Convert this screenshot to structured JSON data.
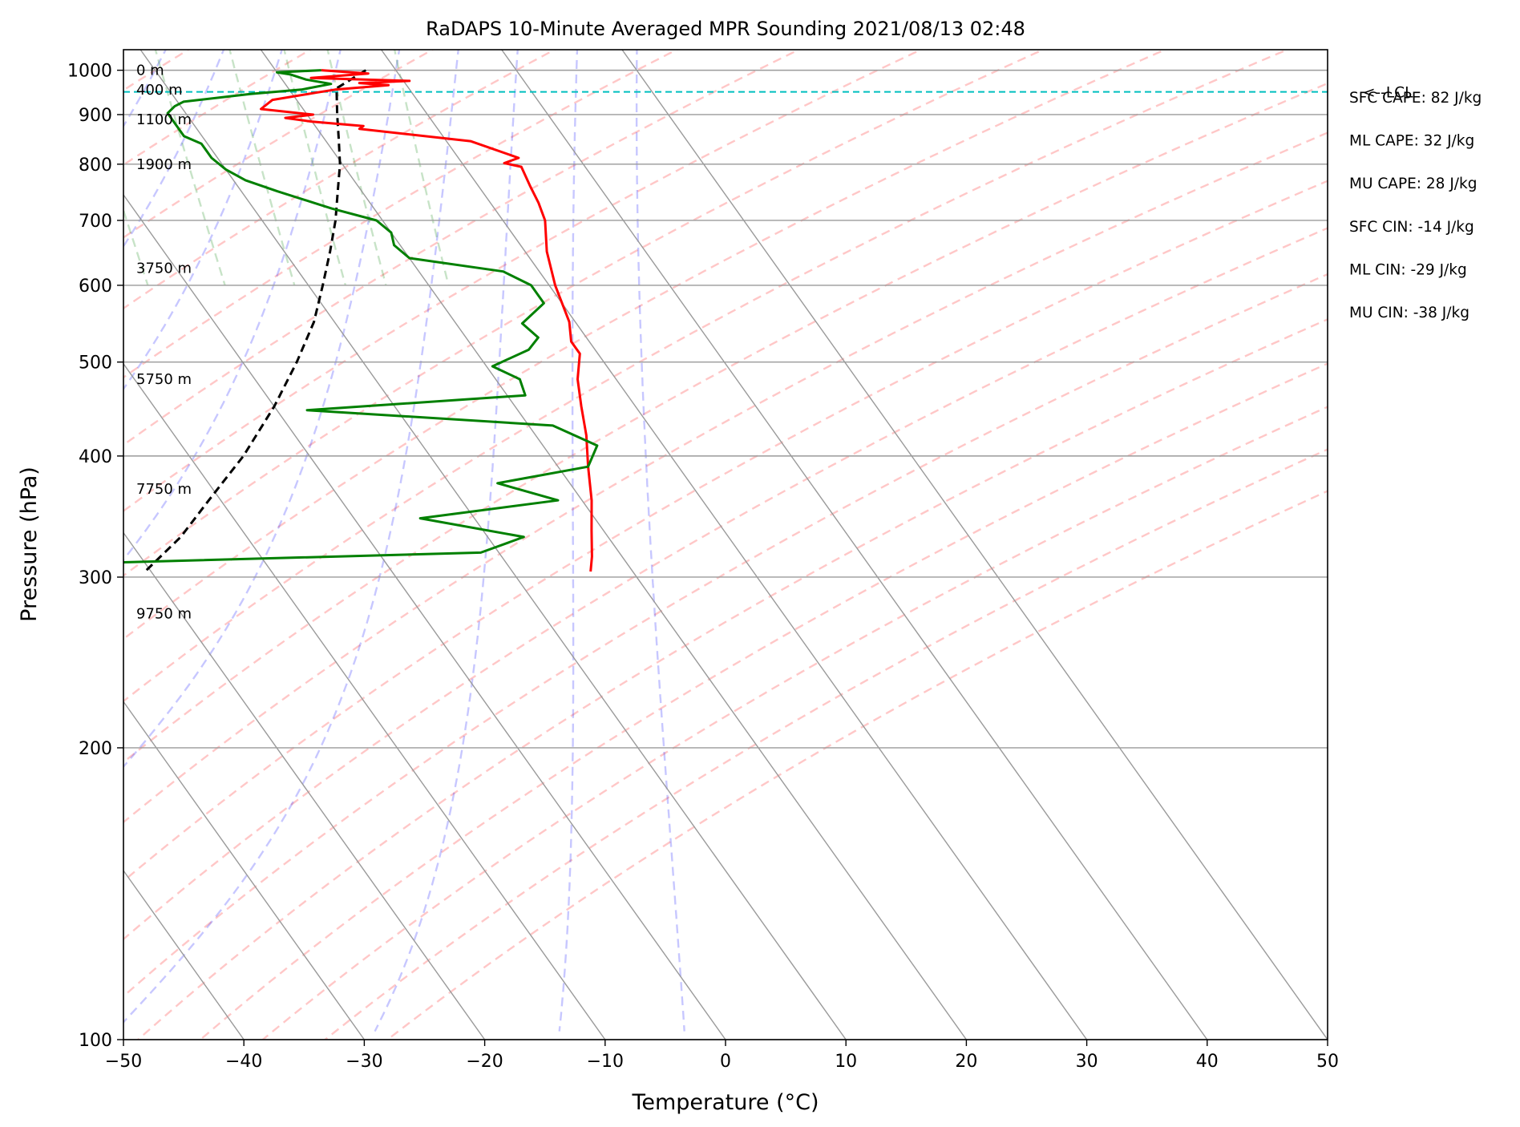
{
  "chart_data": {
    "type": "skew-t sounding",
    "title": "RaDAPS 10-Minute Averaged MPR Sounding 2021/08/13 02:48",
    "xlabel": "Temperature (°C)",
    "ylabel": "Pressure (hPa)",
    "xlim": [
      -50,
      50
    ],
    "ylim": [
      1050,
      100
    ],
    "y_scale": "log",
    "grid": true,
    "x_ticks": [
      -50,
      -40,
      -30,
      -20,
      -10,
      0,
      10,
      20,
      30,
      40,
      50
    ],
    "x_tick_labels": [
      "−50",
      "−40",
      "−30",
      "−20",
      "−10",
      "0",
      "10",
      "20",
      "30",
      "40",
      "50"
    ],
    "y_ticks": [
      1000,
      900,
      800,
      700,
      600,
      500,
      400,
      300,
      200,
      100
    ],
    "y_tick_labels": [
      "1000",
      "900",
      "800",
      "700",
      "600",
      "500",
      "400",
      "300",
      "200",
      "100"
    ],
    "colors": {
      "temperature": "#ff0000",
      "dewpoint": "#008000",
      "parcel": "#000000",
      "lcl": "#00bfbf",
      "dry_adiabats": "#ff9999",
      "moist_adiabats": "#9999ff",
      "mixing_ratio": "#99cc99",
      "isotherms": "#a0a0a0"
    },
    "series": [
      {
        "key": "temperature",
        "points": [
          [
            1000,
            23.8
          ],
          [
            992,
            27.5
          ],
          [
            982,
            22.5
          ],
          [
            975,
            30.5
          ],
          [
            970,
            26.2
          ],
          [
            965,
            28.5
          ],
          [
            955,
            23.8
          ],
          [
            948,
            22.0
          ],
          [
            932,
            18.0
          ],
          [
            912,
            16.5
          ],
          [
            900,
            20.5
          ],
          [
            893,
            18.0
          ],
          [
            885,
            20.0
          ],
          [
            876,
            24.0
          ],
          [
            870,
            23.5
          ],
          [
            845,
            32.0
          ],
          [
            812,
            35.0
          ],
          [
            802,
            33.5
          ],
          [
            795,
            34.7
          ],
          [
            760,
            34.3
          ],
          [
            730,
            34.0
          ],
          [
            700,
            33.5
          ],
          [
            650,
            31.8
          ],
          [
            600,
            30.5
          ],
          [
            550,
            29.5
          ],
          [
            525,
            28.5
          ],
          [
            510,
            28.5
          ],
          [
            480,
            26.8
          ],
          [
            450,
            25.5
          ],
          [
            420,
            24.2
          ],
          [
            390,
            22.5
          ],
          [
            360,
            20.8
          ],
          [
            335,
            19.0
          ],
          [
            315,
            17.5
          ],
          [
            304,
            16.5
          ]
        ]
      },
      {
        "key": "dewpoint",
        "points": [
          [
            1000,
            23.8
          ],
          [
            995,
            20.0
          ],
          [
            990,
            21.0
          ],
          [
            978,
            22.0
          ],
          [
            968,
            23.8
          ],
          [
            955,
            21.0
          ],
          [
            945,
            16.5
          ],
          [
            928,
            10.5
          ],
          [
            918,
            9.5
          ],
          [
            903,
            8.5
          ],
          [
            890,
            8.5
          ],
          [
            875,
            8.5
          ],
          [
            855,
            8.5
          ],
          [
            840,
            9.5
          ],
          [
            812,
            9.5
          ],
          [
            790,
            10.0
          ],
          [
            770,
            11.0
          ],
          [
            750,
            13.0
          ],
          [
            720,
            16.5
          ],
          [
            700,
            19.5
          ],
          [
            680,
            20.0
          ],
          [
            660,
            19.5
          ],
          [
            640,
            20.0
          ],
          [
            620,
            27.0
          ],
          [
            600,
            28.5
          ],
          [
            575,
            28.5
          ],
          [
            548,
            25.5
          ],
          [
            530,
            26.0
          ],
          [
            515,
            24.5
          ],
          [
            495,
            20.5
          ],
          [
            480,
            22.0
          ],
          [
            462,
            21.5
          ],
          [
            446,
            2.5
          ],
          [
            430,
            22.0
          ],
          [
            410,
            24.5
          ],
          [
            390,
            22.5
          ],
          [
            375,
            14.0
          ],
          [
            360,
            18.0
          ],
          [
            345,
            5.5
          ],
          [
            330,
            13.0
          ],
          [
            318,
            8.5
          ],
          [
            310,
            -25.0
          ],
          [
            300,
            -28.5
          ],
          [
            296,
            -33.0
          ]
        ]
      },
      {
        "key": "parcel",
        "points": [
          [
            1000,
            27.5
          ],
          [
            958,
            24.0
          ],
          [
            900,
            22.5
          ],
          [
            850,
            21.2
          ],
          [
            800,
            19.8
          ],
          [
            750,
            18.0
          ],
          [
            700,
            16.1
          ],
          [
            650,
            13.8
          ],
          [
            600,
            11.2
          ],
          [
            550,
            8.3
          ],
          [
            500,
            4.5
          ],
          [
            450,
            0.0
          ],
          [
            400,
            -5.5
          ],
          [
            360,
            -11.0
          ],
          [
            330,
            -15.5
          ],
          [
            304,
            -20.5
          ]
        ]
      }
    ],
    "lcl": {
      "pressure": 950,
      "label": "<--LCL"
    },
    "height_labels": [
      {
        "pressure": 1000,
        "text": "0 m"
      },
      {
        "pressure": 955,
        "text": "400 m"
      },
      {
        "pressure": 890,
        "text": "1100 m"
      },
      {
        "pressure": 800,
        "text": "1900 m"
      },
      {
        "pressure": 625,
        "text": "3750 m"
      },
      {
        "pressure": 480,
        "text": "5750 m"
      },
      {
        "pressure": 370,
        "text": "7750 m"
      },
      {
        "pressure": 275,
        "text": "9750 m"
      }
    ],
    "annotations": [
      "SFC CAPE: 82 J/kg",
      "ML CAPE: 32 J/kg",
      "MU CAPE: 28 J/kg",
      "SFC CIN: -14 J/kg",
      "ML CIN: -29 J/kg",
      "MU CIN: -38 J/kg"
    ]
  }
}
